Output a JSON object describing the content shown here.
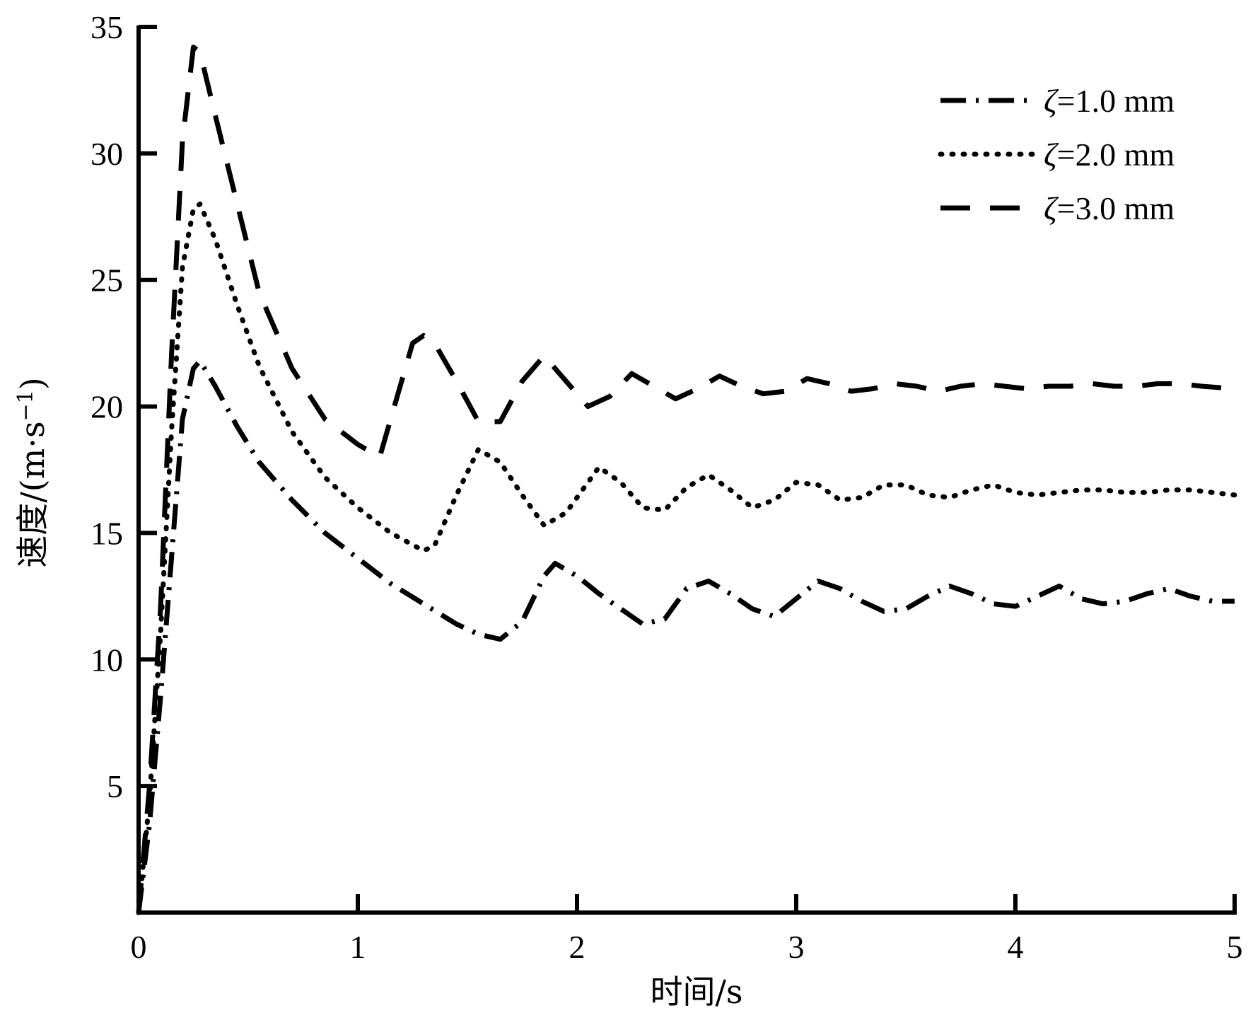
{
  "chart_data": {
    "type": "line",
    "title": "",
    "xlabel": "时间/s",
    "ylabel_parts": {
      "main": "速度/(m·s",
      "sup": "−1",
      "close": ")"
    },
    "xlim": [
      0,
      5
    ],
    "ylim": [
      0,
      35
    ],
    "xticks": [
      0,
      1,
      2,
      3,
      4,
      5
    ],
    "yticks": [
      5,
      10,
      15,
      20,
      25,
      30,
      35
    ],
    "xtick_labels": [
      "0",
      "1",
      "2",
      "3",
      "4",
      "5"
    ],
    "ytick_labels": [
      "5",
      "10",
      "15",
      "20",
      "25",
      "30",
      "35"
    ],
    "grid": false,
    "legend_position": "top-right",
    "series": [
      {
        "name": "ζ=1.0 mm",
        "style": "dash-dot",
        "x": [
          0,
          0.05,
          0.1,
          0.15,
          0.2,
          0.25,
          0.28,
          0.35,
          0.45,
          0.55,
          0.7,
          0.85,
          1.0,
          1.15,
          1.3,
          1.45,
          1.55,
          1.65,
          1.75,
          1.85,
          1.9,
          2.0,
          2.1,
          2.2,
          2.3,
          2.4,
          2.5,
          2.6,
          2.7,
          2.8,
          2.9,
          3.0,
          3.1,
          3.2,
          3.3,
          3.4,
          3.5,
          3.6,
          3.7,
          3.8,
          3.9,
          4.0,
          4.1,
          4.2,
          4.3,
          4.4,
          4.5,
          4.6,
          4.7,
          4.8,
          4.9,
          5.0
        ],
        "y": [
          0,
          3.5,
          8.5,
          14.0,
          19.5,
          21.5,
          21.8,
          20.8,
          19.2,
          17.8,
          16.3,
          15.0,
          14.0,
          13.0,
          12.2,
          11.4,
          11.0,
          10.8,
          11.5,
          13.3,
          13.8,
          13.3,
          12.6,
          12.0,
          11.4,
          11.6,
          12.8,
          13.1,
          12.6,
          12.0,
          11.7,
          12.4,
          13.1,
          12.8,
          12.3,
          11.9,
          12.0,
          12.5,
          12.9,
          12.6,
          12.2,
          12.1,
          12.5,
          12.9,
          12.4,
          12.2,
          12.3,
          12.6,
          12.8,
          12.5,
          12.3,
          12.3
        ]
      },
      {
        "name": "ζ=2.0 mm",
        "style": "dotted",
        "x": [
          0,
          0.05,
          0.1,
          0.15,
          0.2,
          0.25,
          0.28,
          0.35,
          0.45,
          0.55,
          0.7,
          0.85,
          1.0,
          1.15,
          1.3,
          1.35,
          1.45,
          1.55,
          1.65,
          1.75,
          1.85,
          1.95,
          2.1,
          2.2,
          2.3,
          2.4,
          2.5,
          2.6,
          2.7,
          2.8,
          2.9,
          3.0,
          3.1,
          3.2,
          3.3,
          3.4,
          3.5,
          3.6,
          3.7,
          3.8,
          3.9,
          4.0,
          4.1,
          4.2,
          4.3,
          4.4,
          4.5,
          4.6,
          4.7,
          4.8,
          4.9,
          5.0
        ],
        "y": [
          0,
          4.5,
          11.0,
          19.0,
          25.5,
          27.8,
          28.0,
          26.6,
          24.0,
          21.6,
          19.0,
          17.2,
          16.0,
          15.0,
          14.3,
          14.5,
          16.5,
          18.3,
          17.8,
          16.5,
          15.3,
          15.8,
          17.6,
          17.0,
          16.0,
          15.9,
          16.8,
          17.3,
          16.7,
          16.0,
          16.3,
          17.0,
          16.9,
          16.3,
          16.4,
          16.9,
          16.9,
          16.5,
          16.4,
          16.7,
          16.9,
          16.6,
          16.5,
          16.6,
          16.7,
          16.7,
          16.6,
          16.6,
          16.7,
          16.7,
          16.6,
          16.5
        ]
      },
      {
        "name": "ζ=3.0 mm",
        "style": "dashed",
        "x": [
          0,
          0.05,
          0.1,
          0.15,
          0.2,
          0.25,
          0.28,
          0.35,
          0.45,
          0.55,
          0.7,
          0.85,
          1.0,
          1.1,
          1.2,
          1.25,
          1.3,
          1.35,
          1.45,
          1.55,
          1.65,
          1.75,
          1.85,
          1.95,
          2.05,
          2.15,
          2.25,
          2.35,
          2.45,
          2.55,
          2.65,
          2.75,
          2.85,
          2.95,
          3.05,
          3.15,
          3.25,
          3.35,
          3.45,
          3.55,
          3.65,
          3.75,
          3.85,
          3.95,
          4.05,
          4.15,
          4.25,
          4.35,
          4.45,
          4.55,
          4.65,
          4.75,
          4.85,
          5.0
        ],
        "y": [
          0,
          5.0,
          12.0,
          22.0,
          30.5,
          34.2,
          34.0,
          31.5,
          28.0,
          24.5,
          21.5,
          19.5,
          18.5,
          18.0,
          21.0,
          22.5,
          22.8,
          22.5,
          21.0,
          19.4,
          19.4,
          21.0,
          22.0,
          21.0,
          20.0,
          20.4,
          21.3,
          20.8,
          20.3,
          20.7,
          21.2,
          20.8,
          20.5,
          20.6,
          21.1,
          20.9,
          20.6,
          20.7,
          20.9,
          20.8,
          20.6,
          20.8,
          20.9,
          20.8,
          20.7,
          20.8,
          20.8,
          20.9,
          20.8,
          20.8,
          20.9,
          20.9,
          20.8,
          20.7
        ]
      }
    ]
  }
}
